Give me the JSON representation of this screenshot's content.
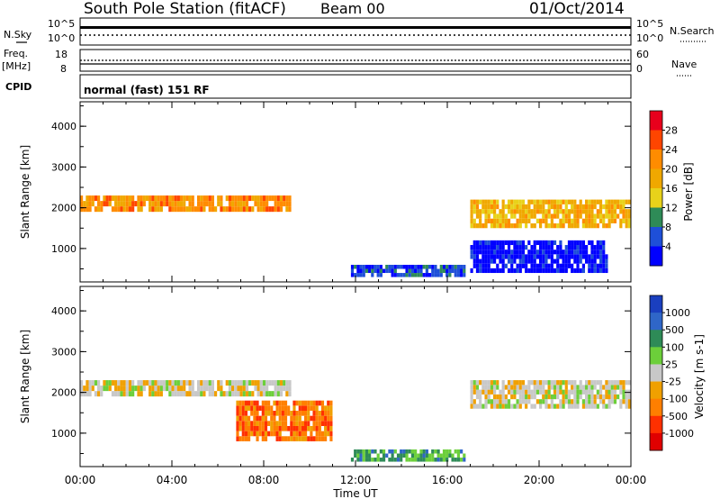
{
  "header": {
    "station": "South Pole Station (fitACF)",
    "beam": "Beam 00",
    "date": "01/Oct/2014"
  },
  "parameters": {
    "nsky_label": "N.Sky",
    "nsearch_label": "N.Search",
    "freq_label_1": "Freq.",
    "freq_label_2": "[MHz]",
    "nave_label": "Nave",
    "cpid_label": "CPID",
    "cpid_text": "normal (fast) 151 RF",
    "left_ticks_top": [
      "10^5",
      "10^0"
    ],
    "right_ticks_top": [
      "10^5",
      "10^0"
    ],
    "freq_ticks": [
      "18",
      "8"
    ],
    "nave_ticks": [
      "60",
      "0"
    ]
  },
  "chart_data": [
    {
      "type": "heatmap",
      "name": "power",
      "ylabel": "Slant Range [km]",
      "ylim": [
        180,
        4600
      ],
      "yticks": [
        1000,
        2000,
        3000,
        4000
      ],
      "xlim": [
        0,
        24
      ],
      "colorbar": {
        "label": "Power [dB]",
        "ticks": [
          "28",
          "24",
          "20",
          "16",
          "12",
          "8",
          "4"
        ],
        "colors": [
          "#e8001c",
          "#ff4500",
          "#ff8c00",
          "#f0a800",
          "#e8d21a",
          "#2e8b57",
          "#1e4fd8",
          "#0000ff"
        ]
      },
      "features": [
        {
          "t0": 0.0,
          "t1": 9.2,
          "r0": 1900,
          "r1": 2300,
          "level": 2
        },
        {
          "t0": 11.8,
          "t1": 16.8,
          "r0": 300,
          "r1": 600,
          "level": 6
        },
        {
          "t0": 17.0,
          "t1": 23.0,
          "r0": 400,
          "r1": 1200,
          "level": 7
        },
        {
          "t0": 17.0,
          "t1": 24.0,
          "r0": 1500,
          "r1": 2200,
          "level": 3
        }
      ]
    },
    {
      "type": "heatmap",
      "name": "velocity",
      "ylabel": "Slant Range [km]",
      "ylim": [
        180,
        4600
      ],
      "yticks": [
        1000,
        2000,
        3000,
        4000
      ],
      "xlim": [
        0,
        24
      ],
      "xlabel": "Time UT",
      "xticks": [
        "00:00",
        "04:00",
        "08:00",
        "12:00",
        "16:00",
        "20:00",
        "00:00"
      ],
      "colorbar": {
        "label": "Velocity [m s-1]",
        "ticks": [
          "1000",
          "500",
          "100",
          "25",
          "-25",
          "-100",
          "-500",
          "-1000"
        ],
        "colors": [
          "#1a3fbf",
          "#2f66c8",
          "#2e8b57",
          "#6ccf3a",
          "#c8c8c8",
          "#f0a000",
          "#ff7f00",
          "#ff3000",
          "#e00000"
        ]
      },
      "features": [
        {
          "t0": 0.0,
          "t1": 9.2,
          "r0": 1900,
          "r1": 2300,
          "level": 4
        },
        {
          "t0": 6.8,
          "t1": 11.0,
          "r0": 800,
          "r1": 1800,
          "level": 6
        },
        {
          "t0": 11.8,
          "t1": 16.8,
          "r0": 300,
          "r1": 600,
          "level": 2
        },
        {
          "t0": 17.0,
          "t1": 24.0,
          "r0": 1600,
          "r1": 2300,
          "level": 4
        }
      ]
    }
  ]
}
